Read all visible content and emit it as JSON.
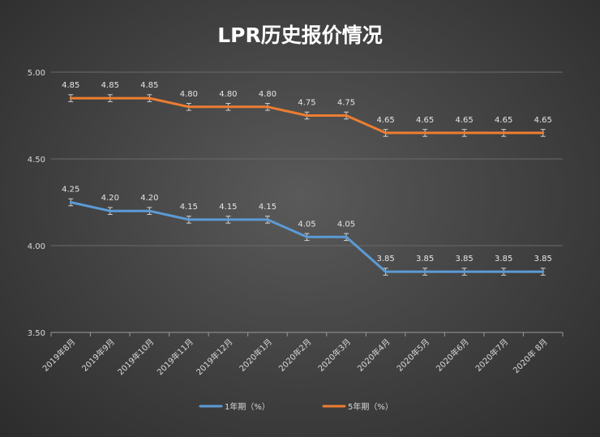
{
  "chart_data": {
    "type": "line",
    "title": "LPR历史报价情况",
    "categories": [
      "2019年8月",
      "2019年9月",
      "2019年10月",
      "2019年11月",
      "2019年12月",
      "2020年1月",
      "2020年2月",
      "2020年3月",
      "2020年4月",
      "2020年5月",
      "2020年6月",
      "2020年7月",
      "2020年 8月"
    ],
    "series": [
      {
        "name": "1年期（%）",
        "color": "#5b9bd5",
        "values": [
          4.25,
          4.2,
          4.2,
          4.15,
          4.15,
          4.15,
          4.05,
          4.05,
          3.85,
          3.85,
          3.85,
          3.85,
          3.85
        ]
      },
      {
        "name": "5年期（%）",
        "color": "#ed7d31",
        "values": [
          4.85,
          4.85,
          4.85,
          4.8,
          4.8,
          4.8,
          4.75,
          4.75,
          4.65,
          4.65,
          4.65,
          4.65,
          4.65
        ]
      }
    ],
    "data_labels": {
      "1y": [
        "4.25",
        "4.20",
        "4.20",
        "4.15",
        "4.15",
        "4.15",
        "4.05",
        "4.05",
        "3.85",
        "3.85",
        "3.85",
        "3.85",
        "3.85"
      ],
      "5y": [
        "4.85",
        "4.85",
        "4.85",
        "4.80",
        "4.80",
        "4.80",
        "4.75",
        "4.75",
        "4.65",
        "4.65",
        "4.65",
        "4.65",
        "4.65"
      ]
    },
    "error_bar": 0.02,
    "ylim": [
      3.5,
      5.0
    ],
    "yticks": [
      3.5,
      4.0,
      4.5,
      5.0
    ],
    "ytick_labels": [
      "3.50",
      "4.00",
      "4.50",
      "5.00"
    ],
    "xlabel": "",
    "ylabel": "",
    "grid": true,
    "legend_position": "bottom"
  }
}
